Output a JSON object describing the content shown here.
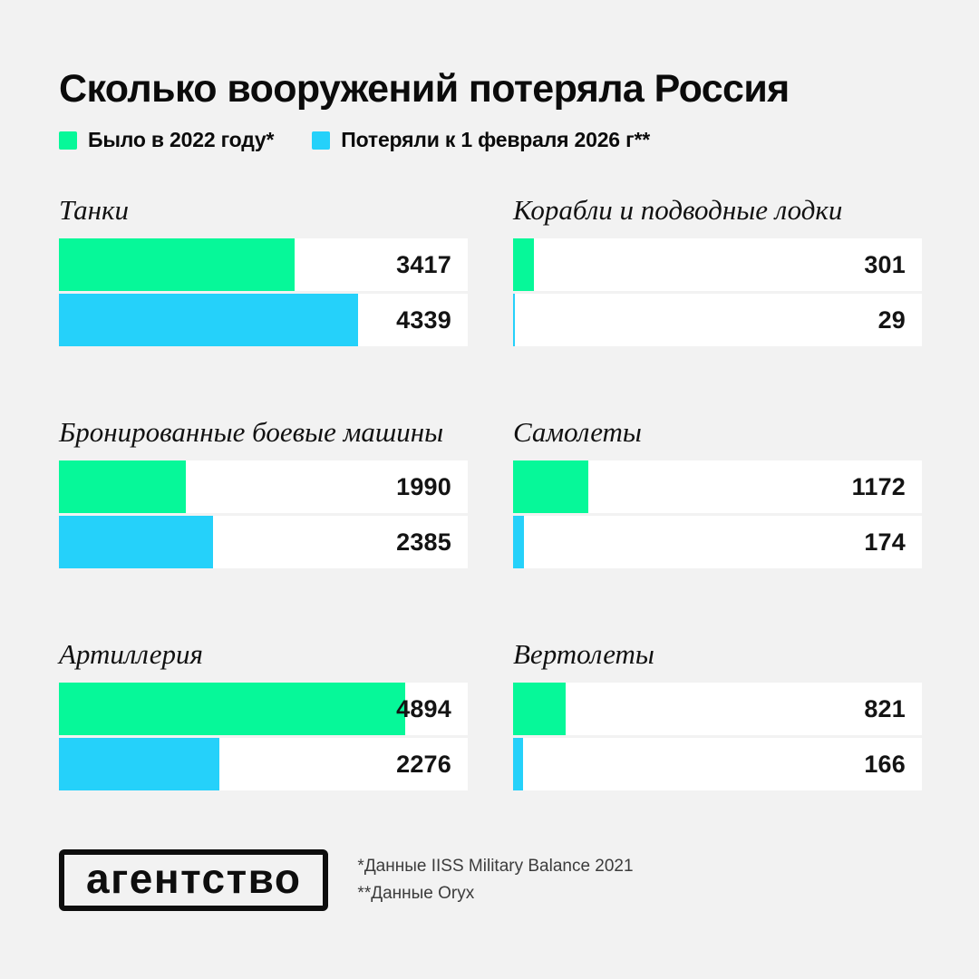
{
  "header": {
    "title": "Сколько вооружений потеряла Россия"
  },
  "colors": {
    "green": "#06F899",
    "blue": "#25D1FA",
    "background": "#F2F2F2",
    "track": "#FFFFFF",
    "text": "#0B0B0B",
    "note_text": "#3C3C3C"
  },
  "chart_data": {
    "type": "bar",
    "title": "Сколько вооружений потеряла Россия",
    "orientation": "horizontal",
    "legend_position": "top",
    "grid": "off",
    "categories": [
      "Танки",
      "Корабли и подводные лодки",
      "Бронированные боевые машины",
      "Самолеты",
      "Артиллерия",
      "Вертолеты"
    ],
    "series": [
      {
        "name": "Было в 2022 году*",
        "color_key": "green",
        "values": [
          3417,
          301,
          1990,
          1172,
          4894,
          821
        ],
        "width_pct": [
          57.7,
          5.1,
          31.0,
          18.4,
          84.7,
          12.8
        ]
      },
      {
        "name": "Потеряли к 1 февраля 2026 г**",
        "color_key": "blue",
        "values": [
          4339,
          29,
          2385,
          174,
          2276,
          166
        ],
        "width_pct": [
          73.2,
          0.5,
          37.6,
          2.7,
          39.2,
          2.4
        ]
      }
    ]
  },
  "footer": {
    "logo_text": "агентство",
    "notes": [
      "*Данные IISS Military Balance 2021",
      "**Данные Oryx"
    ]
  }
}
